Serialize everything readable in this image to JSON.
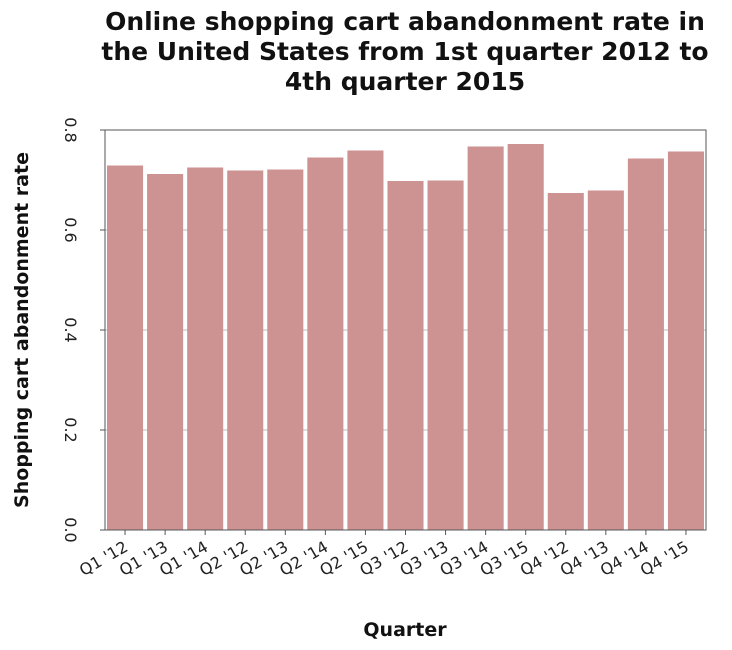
{
  "chart_data": {
    "type": "bar",
    "title": "Online shopping cart abandonment rate in the United States from 1st quarter 2012 to 4th quarter 2015",
    "title_lines": [
      "Online shopping cart abandonment rate in",
      "the United States from 1st quarter 2012 to",
      "4th quarter 2015"
    ],
    "xlabel": "Quarter",
    "ylabel": "Shopping cart abandonment rate",
    "categories": [
      "Q1 '12",
      "Q1 '13",
      "Q1 '14",
      "Q2 '12",
      "Q2 '13",
      "Q2 '14",
      "Q2 '15",
      "Q3 '12",
      "Q3 '13",
      "Q3 '14",
      "Q3 '15",
      "Q4 '12",
      "Q4 '13",
      "Q4 '14",
      "Q4 '15"
    ],
    "values": [
      0.729,
      0.712,
      0.725,
      0.719,
      0.721,
      0.745,
      0.759,
      0.698,
      0.699,
      0.767,
      0.772,
      0.674,
      0.679,
      0.743,
      0.757
    ],
    "ylim": [
      0,
      0.8
    ],
    "yticks": [
      "0.0",
      "0.2",
      "0.4",
      "0.6",
      "0.8"
    ],
    "ytick_values": [
      0,
      0.2,
      0.4,
      0.6,
      0.8
    ],
    "grid": "horizontal",
    "bar_color": "#cd9292",
    "grid_color": "#bbbbbb",
    "axis_color": "#555555"
  }
}
